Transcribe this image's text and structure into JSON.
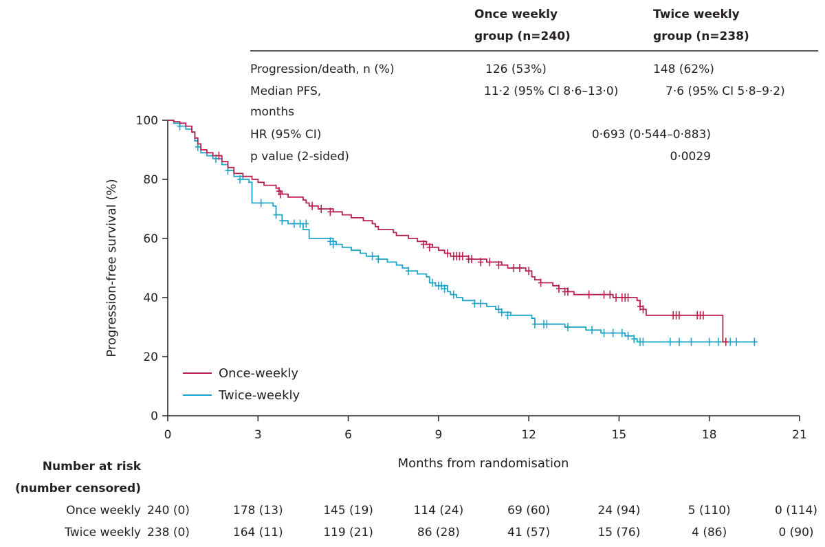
{
  "colors": {
    "once": "#b8204d",
    "twice": "#1ea5c6",
    "axis": "#231f20"
  },
  "stats_table": {
    "col_once": [
      "Once weekly",
      "group (n=240)"
    ],
    "col_twice": [
      "Twice weekly",
      "group (n=238)"
    ],
    "rows": {
      "progression": {
        "label": "Progression/death, n (%)",
        "once": "126 (53%)",
        "twice": "148 (62%)"
      },
      "median": {
        "label": [
          "Median PFS,",
          "months"
        ],
        "once": "11·2 (95% CI 8·6–13·0)",
        "twice": "7·6 (95% CI 5·8–9·2)"
      },
      "hr": {
        "label": "HR (95% CI)",
        "value": "0·693 (0·544–0·883)"
      },
      "pvalue": {
        "label": "p value (2-sided)",
        "value": "0·0029"
      }
    }
  },
  "chart_data": {
    "type": "line",
    "subtype": "kaplan-meier-step",
    "xlabel": "Months from randomisation",
    "ylabel": "Progression-free survival (%)",
    "xlim": [
      0,
      21
    ],
    "ylim": [
      0,
      100
    ],
    "xticks": [
      0,
      3,
      6,
      9,
      12,
      15,
      18,
      21
    ],
    "yticks": [
      0,
      20,
      40,
      60,
      80,
      100
    ],
    "legend_position": "bottom-left",
    "series": [
      {
        "name": "Once-weekly",
        "key": "once",
        "steps": [
          [
            0,
            100
          ],
          [
            0.2,
            99.5
          ],
          [
            0.4,
            99
          ],
          [
            0.6,
            98
          ],
          [
            0.8,
            96
          ],
          [
            0.9,
            94
          ],
          [
            1.0,
            92
          ],
          [
            1.1,
            90
          ],
          [
            1.3,
            89
          ],
          [
            1.5,
            88
          ],
          [
            1.8,
            86
          ],
          [
            2.0,
            84
          ],
          [
            2.2,
            82
          ],
          [
            2.5,
            81
          ],
          [
            2.8,
            80
          ],
          [
            3.0,
            79
          ],
          [
            3.2,
            78
          ],
          [
            3.6,
            77
          ],
          [
            3.7,
            76
          ],
          [
            3.8,
            75
          ],
          [
            4.0,
            74
          ],
          [
            4.5,
            73
          ],
          [
            4.6,
            72
          ],
          [
            4.7,
            71
          ],
          [
            5.0,
            70
          ],
          [
            5.5,
            69
          ],
          [
            5.8,
            68
          ],
          [
            6.1,
            67
          ],
          [
            6.5,
            66
          ],
          [
            6.8,
            65
          ],
          [
            6.9,
            64
          ],
          [
            7.0,
            63
          ],
          [
            7.5,
            62
          ],
          [
            7.6,
            61
          ],
          [
            8.0,
            60
          ],
          [
            8.3,
            59
          ],
          [
            8.6,
            58
          ],
          [
            8.8,
            57
          ],
          [
            9.0,
            56
          ],
          [
            9.2,
            55
          ],
          [
            9.4,
            54
          ],
          [
            10.0,
            53
          ],
          [
            10.6,
            52
          ],
          [
            11.1,
            51
          ],
          [
            11.3,
            50
          ],
          [
            11.9,
            49
          ],
          [
            12.1,
            47
          ],
          [
            12.2,
            46
          ],
          [
            12.4,
            45
          ],
          [
            12.8,
            44
          ],
          [
            13.0,
            43
          ],
          [
            13.3,
            42
          ],
          [
            13.5,
            41
          ],
          [
            14.4,
            41
          ],
          [
            14.8,
            40
          ],
          [
            15.6,
            39
          ],
          [
            15.7,
            37
          ],
          [
            15.8,
            36
          ],
          [
            15.9,
            34
          ],
          [
            16.5,
            34
          ],
          [
            18.45,
            34
          ],
          [
            18.45,
            25
          ],
          [
            18.6,
            25
          ]
        ],
        "censors": [
          [
            1.7,
            88
          ],
          [
            3.7,
            76
          ],
          [
            3.75,
            75
          ],
          [
            4.8,
            71
          ],
          [
            5.1,
            70
          ],
          [
            5.4,
            69
          ],
          [
            8.5,
            58
          ],
          [
            8.7,
            57
          ],
          [
            9.3,
            55
          ],
          [
            9.5,
            54
          ],
          [
            9.6,
            54
          ],
          [
            9.7,
            54
          ],
          [
            9.8,
            54
          ],
          [
            10.0,
            53
          ],
          [
            10.1,
            53
          ],
          [
            10.4,
            52
          ],
          [
            10.7,
            52
          ],
          [
            11.0,
            51
          ],
          [
            11.5,
            50
          ],
          [
            11.7,
            50
          ],
          [
            12.0,
            49
          ],
          [
            12.4,
            45
          ],
          [
            13.0,
            43
          ],
          [
            13.2,
            42
          ],
          [
            13.3,
            42
          ],
          [
            14.0,
            41
          ],
          [
            14.5,
            41
          ],
          [
            14.7,
            41
          ],
          [
            14.9,
            40
          ],
          [
            15.1,
            40
          ],
          [
            15.2,
            40
          ],
          [
            15.3,
            40
          ],
          [
            15.7,
            37
          ],
          [
            15.8,
            36
          ],
          [
            16.8,
            34
          ],
          [
            16.9,
            34
          ],
          [
            17.0,
            34
          ],
          [
            17.6,
            34
          ],
          [
            17.7,
            34
          ],
          [
            17.8,
            34
          ],
          [
            18.55,
            25
          ]
        ]
      },
      {
        "name": "Twice-weekly",
        "key": "twice",
        "steps": [
          [
            0,
            100
          ],
          [
            0.2,
            99
          ],
          [
            0.4,
            98
          ],
          [
            0.6,
            97
          ],
          [
            0.8,
            96
          ],
          [
            0.9,
            93
          ],
          [
            1.0,
            91
          ],
          [
            1.1,
            89
          ],
          [
            1.3,
            88
          ],
          [
            1.5,
            87
          ],
          [
            1.8,
            85
          ],
          [
            2.0,
            83
          ],
          [
            2.2,
            81
          ],
          [
            2.5,
            80
          ],
          [
            2.7,
            79
          ],
          [
            2.8,
            72
          ],
          [
            3.5,
            71
          ],
          [
            3.6,
            68
          ],
          [
            3.8,
            66
          ],
          [
            4.0,
            65
          ],
          [
            4.5,
            63
          ],
          [
            4.7,
            60
          ],
          [
            5.5,
            59
          ],
          [
            5.6,
            58
          ],
          [
            5.8,
            57
          ],
          [
            6.1,
            56
          ],
          [
            6.4,
            55
          ],
          [
            6.6,
            54
          ],
          [
            7.0,
            53
          ],
          [
            7.3,
            52
          ],
          [
            7.6,
            51
          ],
          [
            7.8,
            50
          ],
          [
            8.0,
            49
          ],
          [
            8.3,
            48
          ],
          [
            8.6,
            47
          ],
          [
            8.7,
            45
          ],
          [
            8.9,
            44
          ],
          [
            9.3,
            42
          ],
          [
            9.4,
            41
          ],
          [
            9.6,
            40
          ],
          [
            9.8,
            39
          ],
          [
            10.2,
            38
          ],
          [
            10.6,
            37
          ],
          [
            10.9,
            36
          ],
          [
            11.1,
            35
          ],
          [
            11.4,
            34
          ],
          [
            12.0,
            34
          ],
          [
            12.1,
            33
          ],
          [
            12.2,
            31
          ],
          [
            13.0,
            31
          ],
          [
            13.2,
            30
          ],
          [
            13.9,
            29
          ],
          [
            14.4,
            28
          ],
          [
            15.1,
            28
          ],
          [
            15.2,
            27
          ],
          [
            15.5,
            26
          ],
          [
            15.6,
            25
          ],
          [
            19.6,
            25
          ]
        ],
        "censors": [
          [
            0.4,
            98
          ],
          [
            1.0,
            91
          ],
          [
            1.6,
            87
          ],
          [
            2.0,
            83
          ],
          [
            2.4,
            80
          ],
          [
            3.1,
            72
          ],
          [
            3.6,
            68
          ],
          [
            3.8,
            66
          ],
          [
            4.2,
            65
          ],
          [
            4.4,
            65
          ],
          [
            4.6,
            65
          ],
          [
            5.4,
            59
          ],
          [
            5.5,
            58
          ],
          [
            6.8,
            54
          ],
          [
            7.0,
            53
          ],
          [
            8.0,
            49
          ],
          [
            8.8,
            45
          ],
          [
            9.0,
            44
          ],
          [
            9.1,
            44
          ],
          [
            9.2,
            43
          ],
          [
            9.5,
            41
          ],
          [
            10.2,
            38
          ],
          [
            10.4,
            38
          ],
          [
            11.0,
            36
          ],
          [
            11.1,
            35
          ],
          [
            11.3,
            34
          ],
          [
            12.2,
            31
          ],
          [
            12.5,
            31
          ],
          [
            12.6,
            31
          ],
          [
            13.3,
            30
          ],
          [
            14.1,
            29
          ],
          [
            14.5,
            28
          ],
          [
            14.8,
            28
          ],
          [
            15.1,
            28
          ],
          [
            15.3,
            27
          ],
          [
            15.5,
            26
          ],
          [
            15.7,
            25
          ],
          [
            15.8,
            25
          ],
          [
            16.7,
            25
          ],
          [
            17.0,
            25
          ],
          [
            17.4,
            25
          ],
          [
            18.0,
            25
          ],
          [
            18.3,
            25
          ],
          [
            18.7,
            25
          ],
          [
            18.9,
            25
          ],
          [
            19.5,
            25
          ]
        ]
      }
    ]
  },
  "risk_table": {
    "title": [
      "Number at risk",
      "(number censored)"
    ],
    "rows": [
      {
        "label": "Once weekly",
        "values": [
          "240 (0)",
          "178 (13)",
          "145 (19)",
          "114 (24)",
          "69 (60)",
          "24 (94)",
          "5 (110)",
          "0 (114)"
        ]
      },
      {
        "label": "Twice weekly",
        "values": [
          "238 (0)",
          "164 (11)",
          "119 (21)",
          "86 (28)",
          "41 (57)",
          "15 (76)",
          "4 (86)",
          "0 (90)"
        ]
      }
    ]
  }
}
